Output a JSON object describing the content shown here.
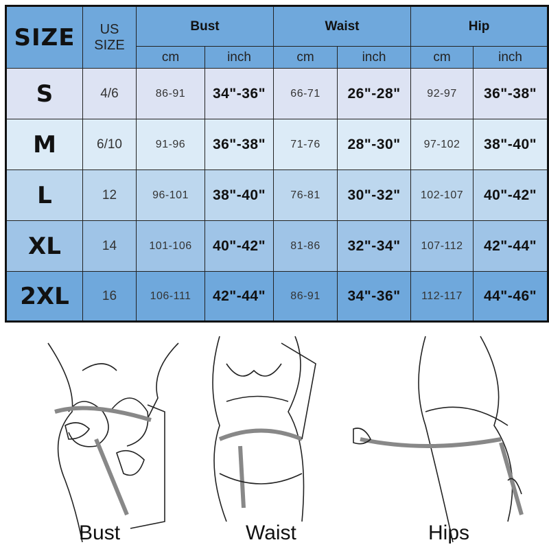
{
  "header": {
    "size": "SIZE",
    "us_size": "US SIZE",
    "groups": [
      "Bust",
      "Waist",
      "Hip"
    ],
    "units": [
      "cm",
      "inch",
      "cm",
      "inch",
      "cm",
      "inch"
    ]
  },
  "rows": [
    {
      "size": "S",
      "us": "4/6",
      "bust_cm": "86-91",
      "bust_in": "34\"-36\"",
      "waist_cm": "66-71",
      "waist_in": "26\"-28\"",
      "hip_cm": "92-97",
      "hip_in": "36\"-38\"",
      "color": "#dde3f3"
    },
    {
      "size": "M",
      "us": "6/10",
      "bust_cm": "91-96",
      "bust_in": "36\"-38\"",
      "waist_cm": "71-76",
      "waist_in": "28\"-30\"",
      "hip_cm": "97-102",
      "hip_in": "38\"-40\"",
      "color": "#dcebf7"
    },
    {
      "size": "L",
      "us": "12",
      "bust_cm": "96-101",
      "bust_in": "38\"-40\"",
      "waist_cm": "76-81",
      "waist_in": "30\"-32\"",
      "hip_cm": "102-107",
      "hip_in": "40\"-42\"",
      "color": "#bdd7ee"
    },
    {
      "size": "XL",
      "us": "14",
      "bust_cm": "101-106",
      "bust_in": "40\"-42\"",
      "waist_cm": "81-86",
      "waist_in": "32\"-34\"",
      "hip_cm": "107-112",
      "hip_in": "42\"-44\"",
      "color": "#9fc4e7"
    },
    {
      "size": "2XL",
      "us": "16",
      "bust_cm": "106-111",
      "bust_in": "42\"-44\"",
      "waist_cm": "86-91",
      "waist_in": "34\"-36\"",
      "hip_cm": "112-117",
      "hip_in": "44\"-46\"",
      "color": "#6fa8dc"
    }
  ],
  "colors": {
    "header": "#6fa8dc",
    "border": "#222222"
  },
  "illustrations": {
    "captions": [
      "Bust",
      "Waist",
      "Hips"
    ]
  }
}
